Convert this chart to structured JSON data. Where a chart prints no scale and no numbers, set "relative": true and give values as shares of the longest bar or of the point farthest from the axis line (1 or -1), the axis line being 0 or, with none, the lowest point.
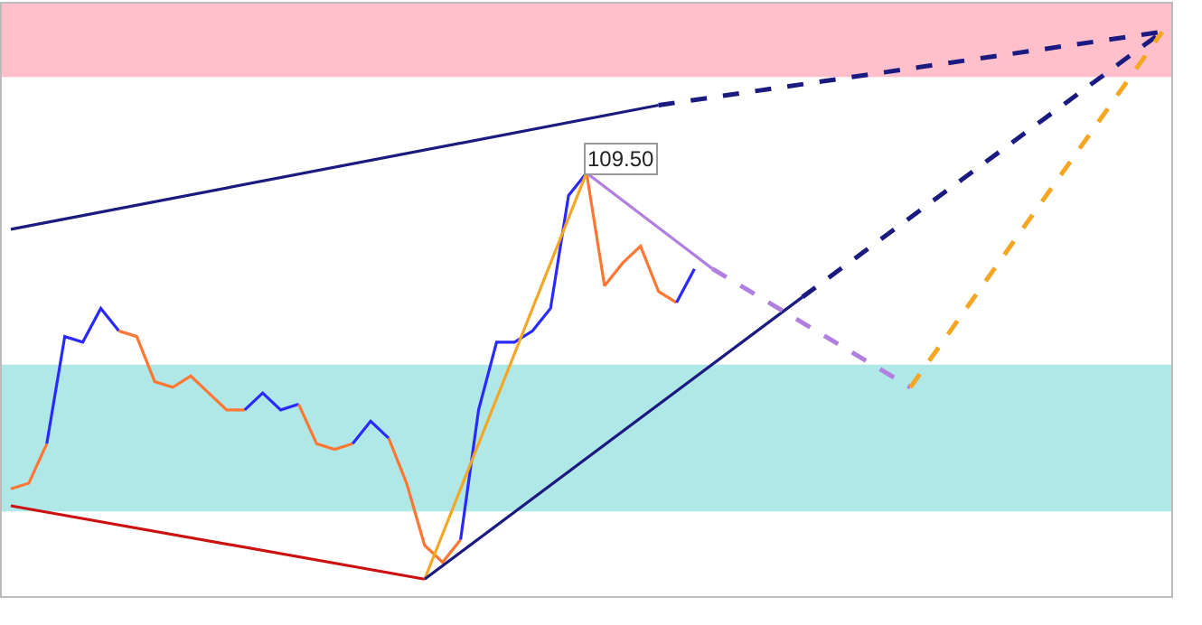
{
  "chart_data": {
    "type": "line",
    "relative": true,
    "categories": [
      null,
      null,
      null,
      null,
      null,
      null,
      null,
      null,
      null,
      null,
      null,
      null,
      null,
      null,
      null,
      null,
      null,
      null,
      null,
      null,
      null,
      null,
      null,
      null,
      null,
      null,
      null,
      null,
      null,
      null,
      null,
      null,
      null,
      null,
      null,
      null,
      null,
      null,
      null,
      null,
      null,
      null,
      null,
      null,
      null,
      null,
      null,
      null,
      null,
      null,
      null,
      null,
      null,
      null,
      null,
      null,
      null,
      null,
      null,
      null,
      null,
      null,
      null,
      null,
      null
    ],
    "bands": [
      {
        "axis": "y",
        "from": 0.92,
        "to": 1.05,
        "color": "#ffc0cb"
      },
      {
        "axis": "y",
        "from": 0.15,
        "to": 0.41,
        "color": "#b0e8e8"
      }
    ],
    "series": [
      {
        "color": "#ff7733",
        "line_style": "solid",
        "values": [
          0.19,
          0.2,
          0.27,
          null,
          null,
          null,
          null,
          null,
          null,
          null,
          null,
          null,
          null,
          null,
          null,
          null,
          null,
          null,
          null,
          null,
          null,
          null,
          null,
          null,
          null,
          null,
          null,
          null,
          null,
          null,
          null,
          null,
          null,
          null,
          null,
          null,
          null,
          null,
          null,
          null,
          null,
          null,
          null,
          null,
          null,
          null,
          null,
          null,
          null,
          null,
          null,
          null,
          null,
          null,
          null,
          null,
          null,
          null,
          null,
          null,
          null,
          null,
          null,
          null,
          null
        ]
      },
      {
        "color": "#2a2aff",
        "line_style": "solid",
        "values": [
          null,
          null,
          0.27,
          0.46,
          0.45,
          0.51,
          0.47,
          null,
          null,
          null,
          null,
          null,
          null,
          null,
          null,
          null,
          null,
          null,
          null,
          null,
          null,
          null,
          null,
          null,
          null,
          null,
          null,
          null,
          null,
          null,
          null,
          null,
          null,
          null,
          null,
          null,
          null,
          null,
          null,
          null,
          null,
          null,
          null,
          null,
          null,
          null,
          null,
          null,
          null,
          null,
          null,
          null,
          null,
          null,
          null,
          null,
          null,
          null,
          null,
          null,
          null,
          null,
          null,
          null,
          null
        ]
      },
      {
        "color": "#ff7733",
        "line_style": "solid",
        "values": [
          null,
          null,
          null,
          null,
          null,
          null,
          0.47,
          0.46,
          0.38,
          0.37,
          0.39,
          0.36,
          0.33,
          0.33,
          null,
          null,
          null,
          null,
          null,
          null,
          null,
          null,
          null,
          null,
          null,
          null,
          null,
          null,
          null,
          null,
          null,
          null,
          null,
          null,
          null,
          null,
          null,
          null,
          null,
          null,
          null,
          null,
          null,
          null,
          null,
          null,
          null,
          null,
          null,
          null,
          null,
          null,
          null,
          null,
          null,
          null,
          null,
          null,
          null,
          null,
          null,
          null,
          null,
          null,
          null
        ]
      },
      {
        "color": "#2a2aff",
        "line_style": "solid",
        "values": [
          null,
          null,
          null,
          null,
          null,
          null,
          null,
          null,
          null,
          null,
          null,
          null,
          null,
          0.33,
          0.36,
          0.33,
          0.34,
          null,
          null,
          null,
          null,
          null,
          null,
          null,
          null,
          null,
          null,
          null,
          null,
          null,
          null,
          null,
          null,
          null,
          null,
          null,
          null,
          null,
          null,
          null,
          null,
          null,
          null,
          null,
          null,
          null,
          null,
          null,
          null,
          null,
          null,
          null,
          null,
          null,
          null,
          null,
          null,
          null,
          null,
          null,
          null,
          null,
          null,
          null,
          null
        ]
      },
      {
        "color": "#ff7733",
        "line_style": "solid",
        "values": [
          null,
          null,
          null,
          null,
          null,
          null,
          null,
          null,
          null,
          null,
          null,
          null,
          null,
          null,
          null,
          null,
          0.34,
          0.27,
          0.26,
          0.27,
          null,
          null,
          null,
          null,
          null,
          null,
          null,
          null,
          null,
          null,
          null,
          null,
          null,
          null,
          null,
          null,
          null,
          null,
          null,
          null,
          null,
          null,
          null,
          null,
          null,
          null,
          null,
          null,
          null,
          null,
          null,
          null,
          null,
          null,
          null,
          null,
          null,
          null,
          null,
          null,
          null,
          null,
          null,
          null,
          null
        ]
      },
      {
        "color": "#2a2aff",
        "line_style": "solid",
        "values": [
          null,
          null,
          null,
          null,
          null,
          null,
          null,
          null,
          null,
          null,
          null,
          null,
          null,
          null,
          null,
          null,
          null,
          null,
          null,
          0.27,
          0.31,
          0.28,
          null,
          null,
          null,
          null,
          null,
          null,
          null,
          null,
          null,
          null,
          null,
          null,
          null,
          null,
          null,
          null,
          null,
          null,
          null,
          null,
          null,
          null,
          null,
          null,
          null,
          null,
          null,
          null,
          null,
          null,
          null,
          null,
          null,
          null,
          null,
          null,
          null,
          null,
          null,
          null,
          null,
          null,
          null
        ]
      },
      {
        "color": "#ff7733",
        "line_style": "solid",
        "values": [
          null,
          null,
          null,
          null,
          null,
          null,
          null,
          null,
          null,
          null,
          null,
          null,
          null,
          null,
          null,
          null,
          null,
          null,
          null,
          null,
          null,
          0.28,
          0.2,
          0.09,
          0.06,
          0.1,
          null,
          null,
          null,
          null,
          null,
          null,
          null,
          null,
          null,
          null,
          null,
          null,
          null,
          null,
          null,
          null,
          null,
          null,
          null,
          null,
          null,
          null,
          null,
          null,
          null,
          null,
          null,
          null,
          null,
          null,
          null,
          null,
          null,
          null,
          null,
          null,
          null,
          null,
          null
        ]
      },
      {
        "color": "#2a2aff",
        "line_style": "solid",
        "values": [
          null,
          null,
          null,
          null,
          null,
          null,
          null,
          null,
          null,
          null,
          null,
          null,
          null,
          null,
          null,
          null,
          null,
          null,
          null,
          null,
          null,
          null,
          null,
          null,
          null,
          0.1,
          0.33,
          0.45,
          0.45,
          0.47,
          0.51,
          0.71,
          0.75,
          null,
          null,
          null,
          null,
          null,
          null,
          null,
          null,
          null,
          null,
          null,
          null,
          null,
          null,
          null,
          null,
          null,
          null,
          null,
          null,
          null,
          null,
          null,
          null,
          null,
          null,
          null,
          null,
          null,
          null,
          null,
          null
        ]
      },
      {
        "color": "#ff7733",
        "line_style": "solid",
        "values": [
          null,
          null,
          null,
          null,
          null,
          null,
          null,
          null,
          null,
          null,
          null,
          null,
          null,
          null,
          null,
          null,
          null,
          null,
          null,
          null,
          null,
          null,
          null,
          null,
          null,
          null,
          null,
          null,
          null,
          null,
          null,
          null,
          0.75,
          0.55,
          0.59,
          0.62,
          0.54,
          0.52,
          null,
          null,
          null,
          null,
          null,
          null,
          null,
          null,
          null,
          null,
          null,
          null,
          null,
          null,
          null,
          null,
          null,
          null,
          null,
          null,
          null,
          null,
          null,
          null,
          null,
          null,
          null
        ]
      },
      {
        "color": "#2a2aff",
        "line_style": "solid",
        "values": [
          null,
          null,
          null,
          null,
          null,
          null,
          null,
          null,
          null,
          null,
          null,
          null,
          null,
          null,
          null,
          null,
          null,
          null,
          null,
          null,
          null,
          null,
          null,
          null,
          null,
          null,
          null,
          null,
          null,
          null,
          null,
          null,
          null,
          null,
          null,
          null,
          null,
          0.52,
          0.58,
          null,
          null,
          null,
          null,
          null,
          null,
          null,
          null,
          null,
          null,
          null,
          null,
          null,
          null,
          null,
          null,
          null,
          null,
          null,
          null,
          null,
          null,
          null,
          null,
          null,
          null
        ]
      },
      {
        "color": "#1a1a80",
        "line_style": "solid",
        "values": [
          0.65,
          null,
          null,
          null,
          null,
          null,
          null,
          null,
          null,
          null,
          null,
          null,
          null,
          null,
          null,
          null,
          null,
          null,
          null,
          null,
          null,
          null,
          null,
          null,
          null,
          null,
          null,
          null,
          null,
          null,
          null,
          null,
          null,
          null,
          null,
          null,
          0.87,
          null,
          null,
          null,
          null,
          null,
          null,
          null,
          null,
          null,
          null,
          null,
          null,
          null,
          null,
          null,
          null,
          null,
          null,
          null,
          null,
          null,
          null,
          null,
          null,
          null,
          null,
          null,
          null
        ]
      },
      {
        "color": "#1a1a80",
        "line_style": "dashed",
        "values": [
          null,
          null,
          null,
          null,
          null,
          null,
          null,
          null,
          null,
          null,
          null,
          null,
          null,
          null,
          null,
          null,
          null,
          null,
          null,
          null,
          null,
          null,
          null,
          null,
          null,
          null,
          null,
          null,
          null,
          null,
          null,
          null,
          null,
          null,
          null,
          null,
          0.87,
          null,
          null,
          null,
          null,
          null,
          null,
          null,
          null,
          null,
          null,
          null,
          null,
          null,
          null,
          null,
          null,
          null,
          null,
          null,
          null,
          null,
          null,
          null,
          null,
          null,
          null,
          null,
          1.0
        ]
      },
      {
        "color": "#cc1111",
        "line_style": "solid",
        "values": [
          0.16,
          null,
          null,
          null,
          null,
          null,
          null,
          null,
          null,
          null,
          null,
          null,
          null,
          null,
          null,
          null,
          null,
          null,
          null,
          null,
          null,
          null,
          null,
          0.03,
          null,
          null,
          null,
          null,
          null,
          null,
          null,
          null,
          null,
          null,
          null,
          null,
          null,
          null,
          null,
          null,
          null,
          null,
          null,
          null,
          null,
          null,
          null,
          null,
          null,
          null,
          null,
          null,
          null,
          null,
          null,
          null,
          null,
          null,
          null,
          null,
          null,
          null,
          null,
          null,
          null
        ]
      },
      {
        "color": "#f5a623",
        "line_style": "solid",
        "values": [
          null,
          null,
          null,
          null,
          null,
          null,
          null,
          null,
          null,
          null,
          null,
          null,
          null,
          null,
          null,
          null,
          null,
          null,
          null,
          null,
          null,
          null,
          null,
          0.03,
          null,
          null,
          null,
          null,
          null,
          null,
          null,
          null,
          0.75,
          null,
          null,
          null,
          null,
          null,
          null,
          null,
          null,
          null,
          null,
          null,
          null,
          null,
          null,
          null,
          null,
          null,
          null,
          null,
          null,
          null,
          null,
          null,
          null,
          null,
          null,
          null,
          null,
          null,
          null,
          null,
          null
        ]
      },
      {
        "color": "#1a1a80",
        "line_style": "solid",
        "values": [
          null,
          null,
          null,
          null,
          null,
          null,
          null,
          null,
          null,
          null,
          null,
          null,
          null,
          null,
          null,
          null,
          null,
          null,
          null,
          null,
          null,
          null,
          null,
          0.03,
          null,
          null,
          null,
          null,
          null,
          null,
          null,
          null,
          null,
          null,
          null,
          null,
          null,
          null,
          null,
          null,
          null,
          null,
          null,
          null,
          0.53,
          null,
          null,
          null,
          null,
          null,
          null,
          null,
          null,
          null,
          null,
          null,
          null,
          null,
          null,
          null,
          null,
          null,
          null,
          null,
          null
        ]
      },
      {
        "color": "#1a1a80",
        "line_style": "dashed",
        "values": [
          null,
          null,
          null,
          null,
          null,
          null,
          null,
          null,
          null,
          null,
          null,
          null,
          null,
          null,
          null,
          null,
          null,
          null,
          null,
          null,
          null,
          null,
          null,
          null,
          null,
          null,
          null,
          null,
          null,
          null,
          null,
          null,
          null,
          null,
          null,
          null,
          null,
          null,
          null,
          null,
          null,
          null,
          null,
          null,
          0.53,
          null,
          null,
          null,
          null,
          null,
          null,
          null,
          null,
          null,
          null,
          null,
          null,
          null,
          null,
          null,
          null,
          null,
          null,
          null,
          1.0
        ]
      },
      {
        "color": "#b07fe0",
        "line_style": "solid",
        "values": [
          null,
          null,
          null,
          null,
          null,
          null,
          null,
          null,
          null,
          null,
          null,
          null,
          null,
          null,
          null,
          null,
          null,
          null,
          null,
          null,
          null,
          null,
          null,
          null,
          null,
          null,
          null,
          null,
          null,
          null,
          null,
          null,
          0.75,
          null,
          null,
          null,
          null,
          null,
          null,
          0.58,
          null,
          null,
          null,
          null,
          null,
          null,
          null,
          null,
          null,
          null,
          null,
          null,
          null,
          null,
          null,
          null,
          null,
          null,
          null,
          null,
          null,
          null,
          null,
          null,
          null
        ]
      },
      {
        "color": "#b07fe0",
        "line_style": "dashed",
        "values": [
          null,
          null,
          null,
          null,
          null,
          null,
          null,
          null,
          null,
          null,
          null,
          null,
          null,
          null,
          null,
          null,
          null,
          null,
          null,
          null,
          null,
          null,
          null,
          null,
          null,
          null,
          null,
          null,
          null,
          null,
          null,
          null,
          null,
          null,
          null,
          null,
          null,
          null,
          null,
          0.58,
          null,
          null,
          null,
          null,
          null,
          null,
          null,
          null,
          null,
          null,
          0.37,
          null,
          null,
          null,
          null,
          null,
          null,
          null,
          null,
          null,
          null,
          null,
          null,
          null,
          null
        ]
      },
      {
        "color": "#f5a623",
        "line_style": "dashed",
        "values": [
          null,
          null,
          null,
          null,
          null,
          null,
          null,
          null,
          null,
          null,
          null,
          null,
          null,
          null,
          null,
          null,
          null,
          null,
          null,
          null,
          null,
          null,
          null,
          null,
          null,
          null,
          null,
          null,
          null,
          null,
          null,
          null,
          null,
          null,
          null,
          null,
          null,
          null,
          null,
          null,
          null,
          null,
          null,
          null,
          null,
          null,
          null,
          null,
          null,
          null,
          0.37,
          null,
          null,
          null,
          null,
          null,
          null,
          null,
          null,
          null,
          null,
          null,
          null,
          null,
          1.0
        ]
      }
    ],
    "annotations": [
      "109.50"
    ]
  }
}
